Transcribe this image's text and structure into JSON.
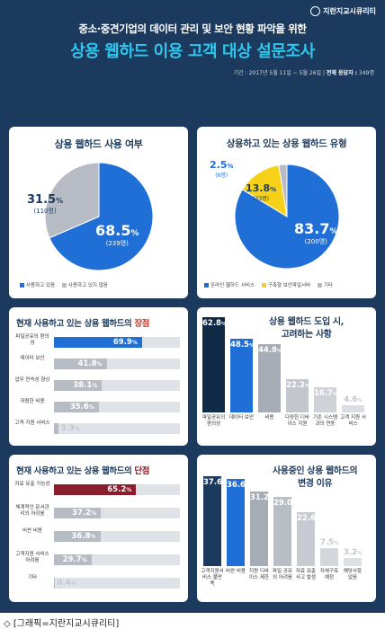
{
  "header": {
    "logo": "지란지교시큐리티",
    "subtitle": "중소·중견기업의 데이터 관리 및 보안 현황 파악을 위한",
    "title": "상용 웹하드 이용 고객 대상 설문조사",
    "period_label": "기간 :",
    "period": "2017년 5월 11일 ~ 5월 26일",
    "respondents_label": "전체 응답자 :",
    "respondents": "349명"
  },
  "caption": "◇ [그래픽=지란지교시큐리티]",
  "colors": {
    "navy": "#1c3a5e",
    "cyan": "#2fc7ee",
    "blue": "#1f6fd6",
    "gray": "#b7bcc4",
    "yellow": "#f7d117",
    "dark": "#0e2a44",
    "maroon": "#8b1e2d"
  },
  "chart_data": [
    {
      "type": "pie",
      "title": "상용 웹하드 사용 여부",
      "slices": [
        {
          "label": "사용하고 있음",
          "value": 68.5,
          "display": "68.5",
          "count": "(239명)",
          "color": "#1f6fd6"
        },
        {
          "label": "사용하고 있지 않음",
          "value": 31.5,
          "display": "31.5",
          "count": "(110명)",
          "color": "#b7bcc4"
        }
      ]
    },
    {
      "type": "pie",
      "title": "상용하고 있는 상용 웹하드 유형",
      "slices": [
        {
          "label": "온라인 웹하드 서비스",
          "value": 83.7,
          "display": "83.7",
          "count": "(200명)",
          "color": "#1f6fd6"
        },
        {
          "label": "구축형 보안파일서버",
          "value": 13.8,
          "display": "13.8",
          "count": "(33명)",
          "color": "#f7d117"
        },
        {
          "label": "기타",
          "value": 2.5,
          "display": "2.5",
          "count": "(6명)",
          "color": "#b7bcc4"
        }
      ]
    },
    {
      "type": "bar",
      "orientation": "horizontal",
      "title_prefix": "현재 사용하고 있는 상용 웹하드의",
      "title_highlight": "장점",
      "categories": [
        "파일공유의 편의성",
        "데이터 보안",
        "업무 연속성 향상",
        "저렴한 비용",
        "고객 지원 서비스"
      ],
      "values": [
        69.9,
        41.8,
        38.1,
        35.6,
        3.3
      ]
    },
    {
      "type": "bar",
      "orientation": "vertical",
      "title_line1": "상용 웹하드 도입 시,",
      "title_line2": "고려하는 사항",
      "categories": [
        "파일공유의 편의성",
        "데이터 보안",
        "비용",
        "다양한 디바이스 지원",
        "기존 시스템과의 연동",
        "고객 지원 서비스"
      ],
      "values": [
        62.8,
        48.5,
        44.8,
        22.2,
        16.7,
        4.6
      ]
    },
    {
      "type": "bar",
      "orientation": "horizontal",
      "title_prefix": "현재 사용하고 있는 상용 웹하드의",
      "title_highlight": "단점",
      "categories": [
        "자료 유출 가능성",
        "체계적인 문서관리의 어려움",
        "비싼 비용",
        "고객지원 서비스 어려움",
        "기타"
      ],
      "values": [
        65.2,
        37.2,
        36.8,
        29.7,
        0.4
      ]
    },
    {
      "type": "bar",
      "orientation": "vertical",
      "title_line1": "사용중인 상용 웹하드의",
      "title_line2": "변경 이유",
      "categories": [
        "고객지원서비스 불만족",
        "비싼 비용",
        "지원 디바이스 제한",
        "파일 공유의 어려움",
        "자료 유출사고 발생",
        "자체구축 예정",
        "해당사항 없음"
      ],
      "values": [
        37.6,
        36.6,
        31.2,
        29.0,
        22.6,
        7.5,
        3.2
      ]
    }
  ]
}
